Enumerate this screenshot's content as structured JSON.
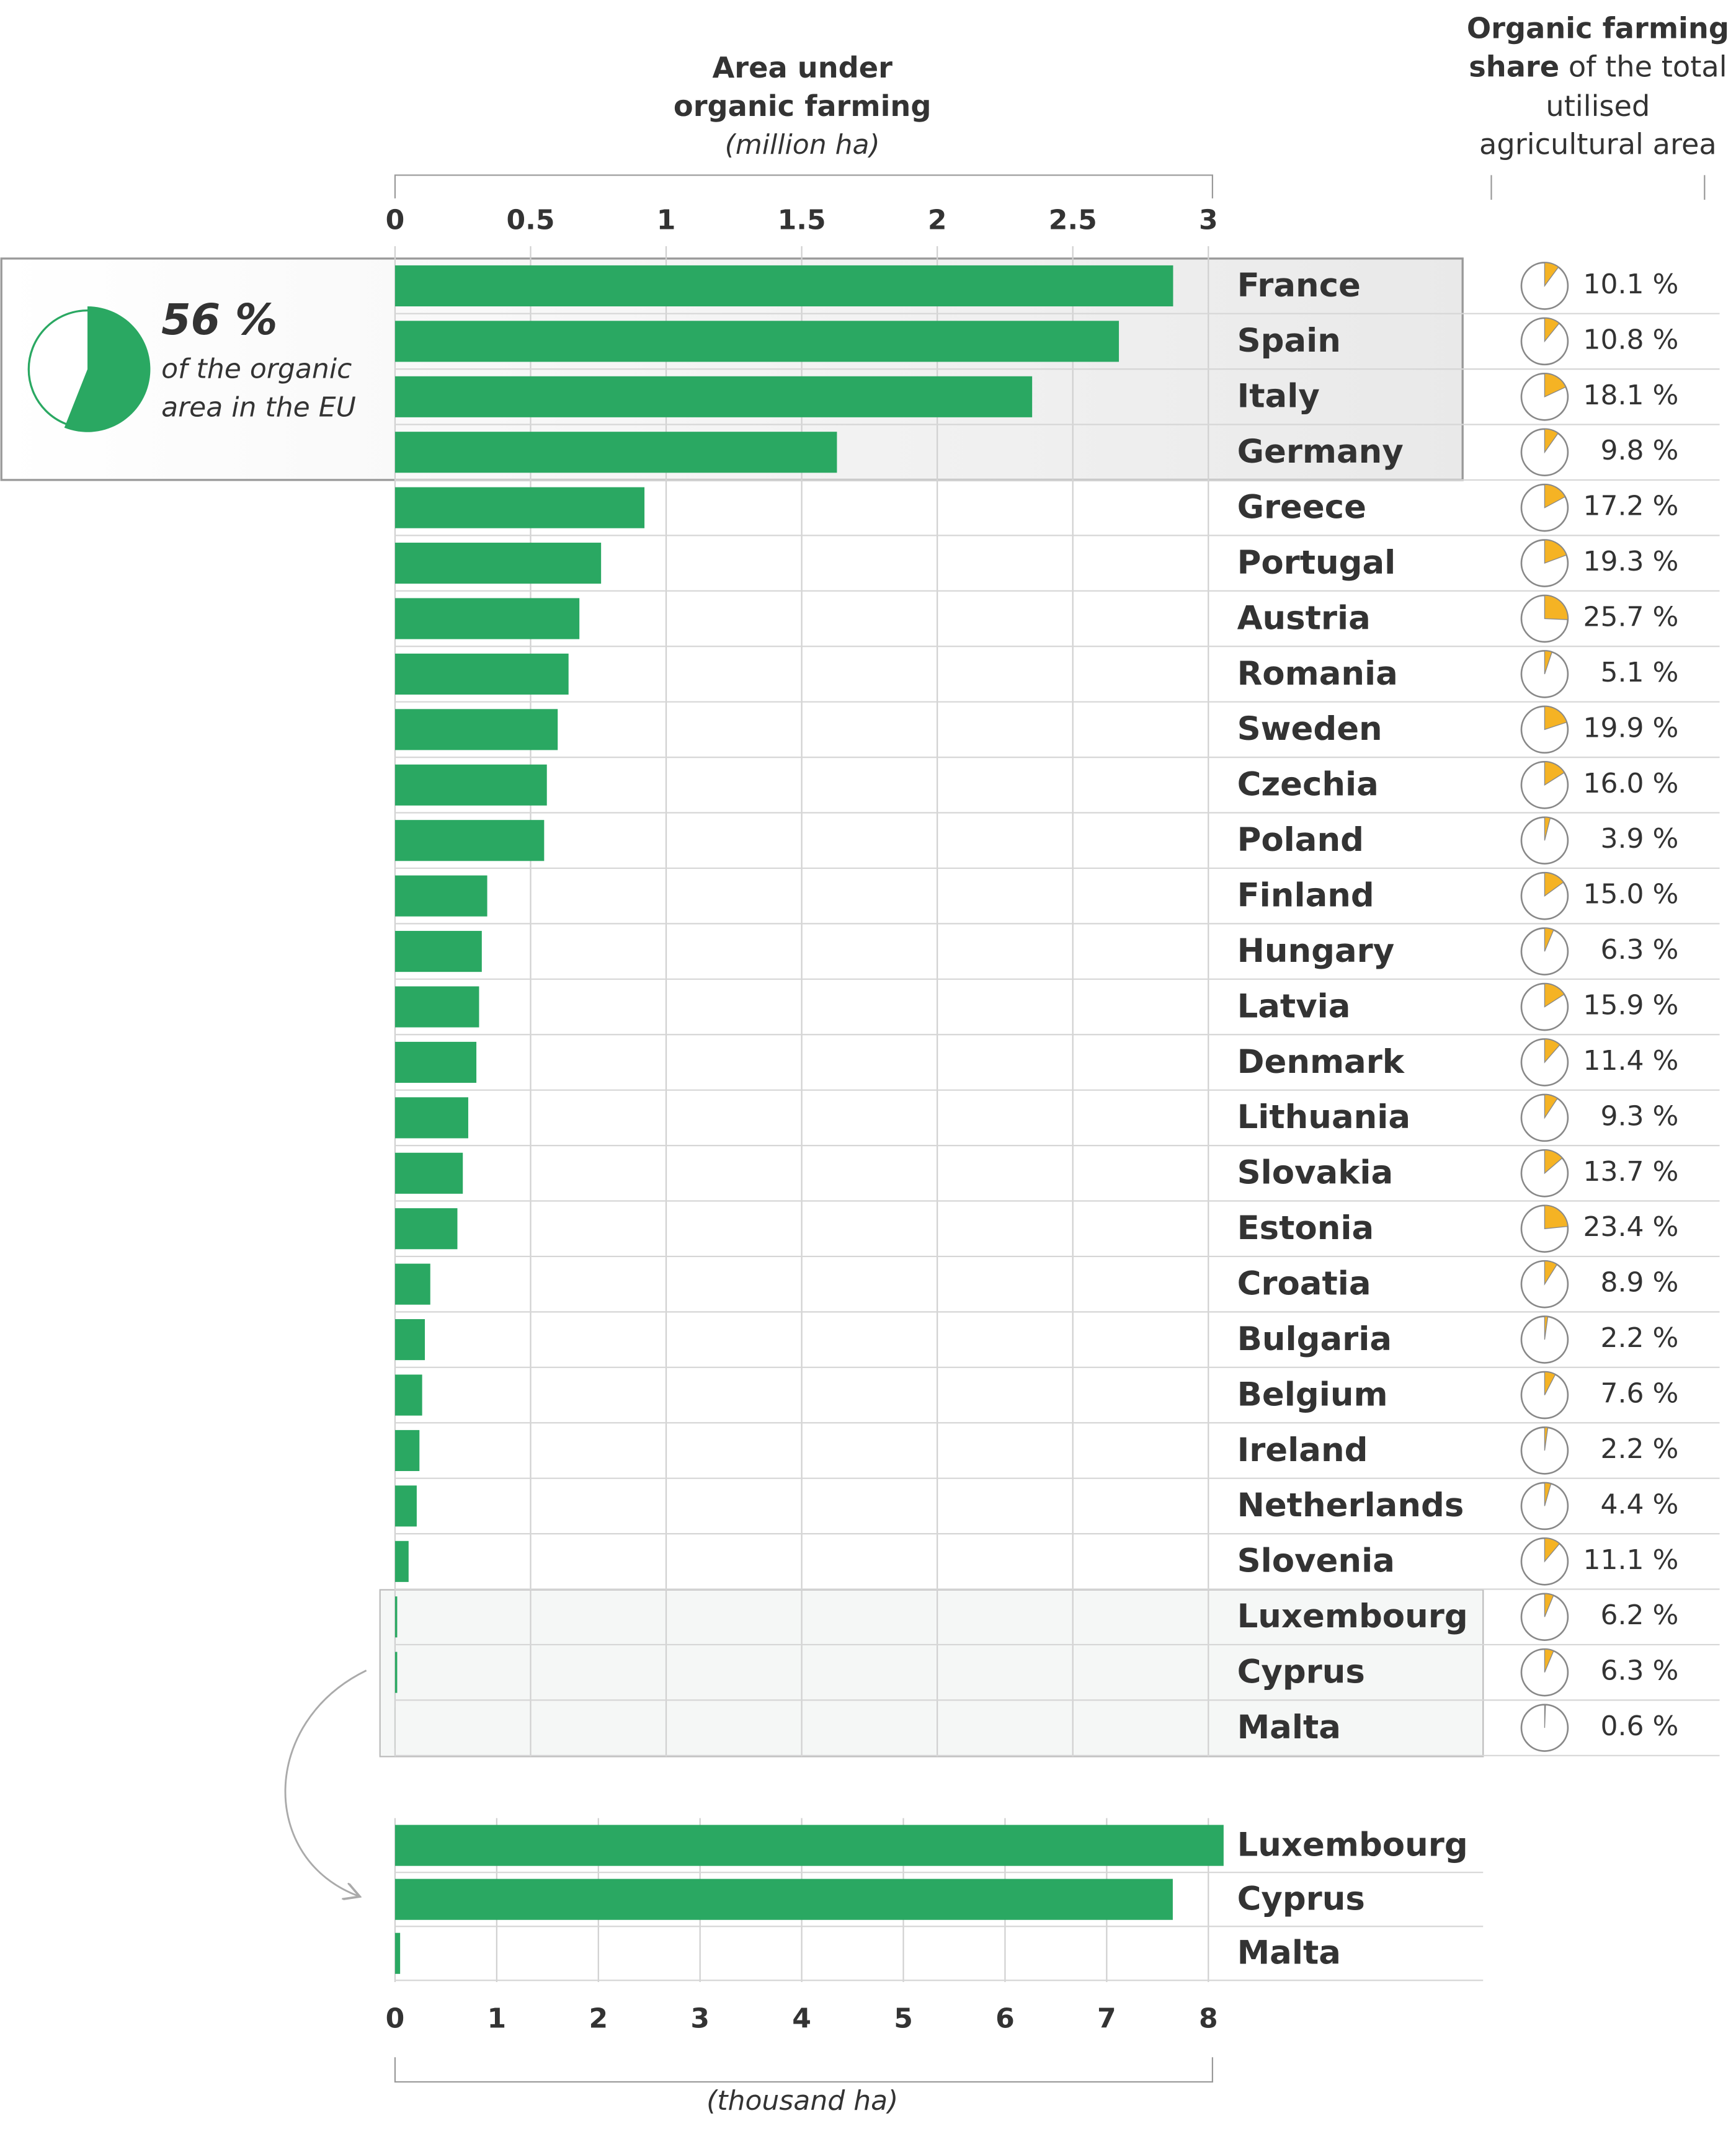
{
  "chart_data": [
    {
      "type": "bar",
      "orientation": "horizontal",
      "title": [
        "Area under",
        "organic farming"
      ],
      "subtitle": "(million ha)",
      "categories": [
        "France",
        "Spain",
        "Italy",
        "Germany",
        "Greece",
        "Portugal",
        "Austria",
        "Romania",
        "Sweden",
        "Czechia",
        "Poland",
        "Finland",
        "Hungary",
        "Latvia",
        "Denmark",
        "Lithuania",
        "Slovakia",
        "Estonia",
        "Croatia",
        "Bulgaria",
        "Belgium",
        "Ireland",
        "Netherlands",
        "Slovenia",
        "Luxembourg",
        "Cyprus",
        "Malta"
      ],
      "values": [
        2.87,
        2.67,
        2.35,
        1.63,
        0.92,
        0.76,
        0.68,
        0.64,
        0.6,
        0.56,
        0.55,
        0.34,
        0.32,
        0.31,
        0.3,
        0.27,
        0.25,
        0.23,
        0.13,
        0.11,
        0.1,
        0.09,
        0.08,
        0.05,
        0.008,
        0.008,
        0.0001
      ],
      "color": "#2aa862",
      "xlim": [
        0,
        3
      ],
      "xticks": [
        0,
        0.5,
        1,
        1.5,
        2,
        2.5,
        3
      ],
      "grid": true,
      "annotation": {
        "value": 56,
        "label": "56 %",
        "text": [
          "of the organic",
          "area in the EU"
        ],
        "color": "#2aa862"
      }
    },
    {
      "type": "bar",
      "orientation": "horizontal",
      "xlabel": "(thousand ha)",
      "categories": [
        "Luxembourg",
        "Cyprus",
        "Malta"
      ],
      "values": [
        8.15,
        7.65,
        0.05
      ],
      "color": "#2aa862",
      "xlim": [
        0,
        8
      ],
      "xticks": [
        0,
        1,
        2,
        3,
        4,
        5,
        6,
        7,
        8
      ],
      "grid": true
    },
    {
      "type": "pie-column",
      "title": [
        "Organic farming",
        "share",
        "of the total",
        "utilised",
        "agricultural area"
      ],
      "values": [
        10.1,
        10.8,
        18.1,
        9.8,
        17.2,
        19.3,
        25.7,
        5.1,
        19.9,
        16.0,
        3.9,
        15.0,
        6.3,
        15.9,
        11.4,
        9.3,
        13.7,
        23.4,
        8.9,
        2.2,
        7.6,
        2.2,
        4.4,
        11.1,
        6.2,
        6.3,
        0.6
      ],
      "value_labels": [
        "10.1 %",
        "10.8 %",
        "18.1 %",
        "9.8 %",
        "17.2 %",
        "19.3 %",
        "25.7 %",
        "5.1 %",
        "19.9 %",
        "16.0 %",
        "3.9 %",
        "15.0 %",
        "6.3 %",
        "15.9 %",
        "11.4 %",
        "9.3 %",
        "13.7 %",
        "23.4 %",
        "8.9 %",
        "2.2 %",
        "7.6 %",
        "2.2 %",
        "4.4 %",
        "11.1 %",
        "6.2 %",
        "6.3 %",
        "0.6 %"
      ],
      "color": "#f5b324"
    }
  ]
}
